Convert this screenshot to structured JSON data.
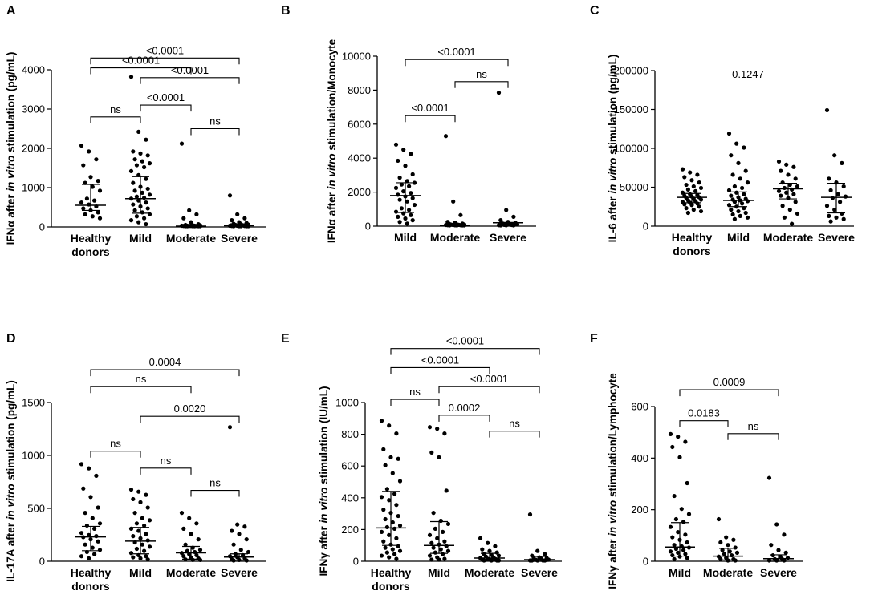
{
  "figure": {
    "panels": [
      "A",
      "B",
      "C",
      "D",
      "E",
      "F"
    ]
  },
  "chart_data": [
    {
      "panel": "A",
      "type": "scatter",
      "ylabel": [
        "IFNα after ",
        "in vitro",
        " stimulation (pg/mL)"
      ],
      "categories": [
        [
          "Healthy",
          "donors"
        ],
        [
          "Mild"
        ],
        [
          "Moderate"
        ],
        [
          "Severe"
        ]
      ],
      "ylim": [
        0,
        4000
      ],
      "yticks": [
        0,
        1000,
        2000,
        3000,
        4000
      ],
      "tick_labels": [
        "0",
        "1000",
        "2000",
        "3000",
        "4000"
      ],
      "medians": [
        550,
        720,
        20,
        30
      ],
      "iqr": [
        [
          420,
          1080
        ],
        [
          350,
          1280
        ],
        [
          5,
          60
        ],
        [
          10,
          80
        ]
      ],
      "points": [
        [
          2050,
          1900,
          1700,
          1550,
          1250,
          1150,
          1100,
          1000,
          900,
          700,
          650,
          600,
          550,
          500,
          450,
          400,
          350,
          300,
          250,
          200
        ],
        [
          3800,
          2400,
          2200,
          1900,
          1850,
          1800,
          1700,
          1650,
          1600,
          1550,
          1500,
          1400,
          1300,
          1200,
          1100,
          1000,
          950,
          900,
          850,
          800,
          750,
          720,
          700,
          650,
          600,
          550,
          500,
          450,
          400,
          350,
          300,
          250,
          200,
          150,
          100,
          50
        ],
        [
          2100,
          400,
          300,
          200,
          100,
          50,
          30,
          20,
          20,
          10,
          10,
          10,
          5,
          5,
          5,
          5,
          0,
          0,
          0,
          0,
          0,
          0
        ],
        [
          780,
          300,
          200,
          150,
          100,
          80,
          60,
          50,
          40,
          30,
          20,
          10,
          10,
          5,
          5,
          0,
          0,
          0,
          0,
          0
        ]
      ],
      "brackets": [
        {
          "from": 0,
          "to": 3,
          "level": 4300,
          "label": "<0.0001"
        },
        {
          "from": 0,
          "to": 2,
          "level": 4050,
          "label": "<0.0001"
        },
        {
          "from": 1,
          "to": 3,
          "level": 3800,
          "label": "<0.0001"
        },
        {
          "from": 1,
          "to": 2,
          "level": 3100,
          "label": "<0.0001"
        },
        {
          "from": 0,
          "to": 1,
          "level": 2800,
          "label": "ns"
        },
        {
          "from": 2,
          "to": 3,
          "level": 2500,
          "label": "ns"
        }
      ]
    },
    {
      "panel": "B",
      "type": "scatter",
      "ylabel": [
        "IFNα after ",
        "in vitro",
        " stimulation/Monocyte"
      ],
      "categories": [
        [
          "Mild"
        ],
        [
          "Moderate"
        ],
        [
          "Severe"
        ]
      ],
      "ylim": [
        0,
        10000
      ],
      "yticks": [
        0,
        2000,
        4000,
        6000,
        8000,
        10000
      ],
      "tick_labels": [
        "0",
        "2000",
        "4000",
        "6000",
        "8000",
        "10000"
      ],
      "medians": [
        1800,
        50,
        200
      ],
      "iqr": [
        [
          800,
          2550
        ],
        [
          0,
          150
        ],
        [
          20,
          300
        ]
      ],
      "points": [
        [
          4750,
          4450,
          4200,
          3800,
          3500,
          3000,
          2800,
          2600,
          2500,
          2400,
          2300,
          2200,
          2000,
          1900,
          1800,
          1700,
          1600,
          1500,
          1400,
          1200,
          1000,
          900,
          800,
          700,
          600,
          500,
          400,
          300,
          200,
          100
        ],
        [
          5250,
          1400,
          600,
          200,
          150,
          100,
          80,
          60,
          50,
          40,
          30,
          20,
          20,
          10,
          10,
          5,
          0,
          0,
          0,
          0
        ],
        [
          7800,
          900,
          500,
          300,
          200,
          150,
          100,
          80,
          50,
          30,
          20,
          10,
          5,
          0,
          0
        ]
      ],
      "brackets": [
        {
          "from": 0,
          "to": 2,
          "level": 9800,
          "label": "<0.0001"
        },
        {
          "from": 1,
          "to": 2,
          "level": 8500,
          "label": "ns"
        },
        {
          "from": 0,
          "to": 1,
          "level": 6500,
          "label": "<0.0001"
        }
      ]
    },
    {
      "panel": "C",
      "type": "scatter",
      "ylabel": [
        "IL-6 after ",
        "in vitro",
        " stimulation (pg/mL)"
      ],
      "categories": [
        [
          "Healthy",
          "donors"
        ],
        [
          "Mild"
        ],
        [
          "Moderate"
        ],
        [
          "Severe"
        ]
      ],
      "ylim": [
        0,
        200000
      ],
      "yticks": [
        0,
        50000,
        100000,
        150000,
        200000
      ],
      "tick_labels": [
        "0",
        "50000",
        "100000",
        "150000",
        "200000"
      ],
      "medians": [
        37000,
        33000,
        48000,
        37000
      ],
      "iqr": [
        [
          30000,
          42000
        ],
        [
          25000,
          44000
        ],
        [
          35000,
          55000
        ],
        [
          17000,
          55000
        ]
      ],
      "points": [
        [
          72000,
          68000,
          65000,
          62000,
          58000,
          55000,
          52000,
          50000,
          48000,
          46000,
          44000,
          42000,
          40000,
          39000,
          38000,
          37000,
          36000,
          35000,
          34000,
          33000,
          32000,
          31000,
          30000,
          29000,
          28000,
          27000,
          26000,
          24000,
          22000,
          20000,
          18000,
          16000
        ],
        [
          118000,
          105000,
          100000,
          90000,
          80000,
          70000,
          65000,
          60000,
          55000,
          50000,
          48000,
          45000,
          42000,
          40000,
          38000,
          36000,
          34000,
          33000,
          32000,
          31000,
          30000,
          28000,
          26000,
          24000,
          22000,
          20000,
          18000,
          16000,
          14000,
          12000,
          10000,
          8000
        ],
        [
          82000,
          78000,
          75000,
          70000,
          65000,
          60000,
          55000,
          52000,
          50000,
          48000,
          46000,
          44000,
          42000,
          40000,
          38000,
          35000,
          30000,
          25000,
          20000,
          15000,
          10000,
          2000
        ],
        [
          148000,
          90000,
          80000,
          60000,
          55000,
          50000,
          45000,
          40000,
          37000,
          35000,
          30000,
          25000,
          20000,
          15000,
          12000,
          10000,
          8000,
          5000
        ]
      ],
      "brackets": [],
      "annotation": "0.1247"
    },
    {
      "panel": "D",
      "type": "scatter",
      "ylabel": [
        "IL-17A after ",
        "in vitro",
        " stimulation (pg/mL)"
      ],
      "categories": [
        [
          "Healthy",
          "donors"
        ],
        [
          "Mild"
        ],
        [
          "Moderate"
        ],
        [
          "Severe"
        ]
      ],
      "ylim": [
        0,
        1500
      ],
      "yticks": [
        0,
        500,
        1000,
        1500
      ],
      "tick_labels": [
        "0",
        "500",
        "1000",
        "1500"
      ],
      "medians": [
        230,
        190,
        80,
        40
      ],
      "iqr": [
        [
          100,
          330
        ],
        [
          70,
          320
        ],
        [
          20,
          140
        ],
        [
          10,
          70
        ]
      ],
      "points": [
        [
          910,
          870,
          800,
          680,
          600,
          500,
          450,
          400,
          350,
          330,
          300,
          260,
          240,
          230,
          220,
          200,
          180,
          150,
          120,
          100,
          80,
          60,
          40,
          20
        ],
        [
          670,
          650,
          620,
          580,
          550,
          500,
          450,
          400,
          380,
          350,
          330,
          300,
          280,
          250,
          230,
          210,
          190,
          170,
          150,
          130,
          110,
          90,
          70,
          50,
          40,
          30,
          20,
          10
        ],
        [
          450,
          400,
          350,
          300,
          250,
          200,
          150,
          120,
          100,
          90,
          80,
          70,
          60,
          50,
          40,
          30,
          20,
          10,
          5,
          5
        ],
        [
          1260,
          340,
          320,
          280,
          250,
          200,
          150,
          100,
          80,
          60,
          50,
          40,
          30,
          20,
          10,
          5,
          0,
          0
        ]
      ],
      "brackets": [
        {
          "from": 0,
          "to": 3,
          "level": 1810,
          "label": "0.0004"
        },
        {
          "from": 0,
          "to": 2,
          "level": 1650,
          "label": "ns"
        },
        {
          "from": 1,
          "to": 3,
          "level": 1370,
          "label": "0.0020"
        },
        {
          "from": 0,
          "to": 1,
          "level": 1040,
          "label": "ns"
        },
        {
          "from": 1,
          "to": 2,
          "level": 880,
          "label": "ns"
        },
        {
          "from": 2,
          "to": 3,
          "level": 670,
          "label": "ns"
        }
      ]
    },
    {
      "panel": "E",
      "type": "scatter",
      "ylabel": [
        "IFNγ after ",
        "in vitro",
        " stimulation (IU/mL)"
      ],
      "categories": [
        [
          "Healthy",
          "donors"
        ],
        [
          "Mild"
        ],
        [
          "Moderate"
        ],
        [
          "Severe"
        ]
      ],
      "ylim": [
        0,
        1000
      ],
      "yticks": [
        0,
        200,
        400,
        600,
        800,
        1000
      ],
      "tick_labels": [
        "0",
        "200",
        "400",
        "600",
        "800",
        "1000"
      ],
      "medians": [
        210,
        100,
        20,
        10
      ],
      "iqr": [
        [
          100,
          440
        ],
        [
          50,
          250
        ],
        [
          5,
          50
        ],
        [
          0,
          30
        ]
      ],
      "points": [
        [
          880,
          850,
          800,
          700,
          650,
          640,
          600,
          550,
          500,
          450,
          420,
          400,
          380,
          350,
          320,
          300,
          280,
          260,
          240,
          220,
          210,
          200,
          180,
          160,
          140,
          120,
          100,
          90,
          80,
          70,
          60,
          50,
          40,
          30,
          20,
          10
        ],
        [
          840,
          830,
          800,
          680,
          650,
          440,
          300,
          250,
          230,
          200,
          180,
          160,
          140,
          120,
          110,
          100,
          90,
          80,
          70,
          60,
          50,
          40,
          30,
          20,
          10,
          5,
          5
        ],
        [
          140,
          110,
          90,
          70,
          60,
          50,
          40,
          35,
          30,
          25,
          20,
          15,
          10,
          10,
          5,
          5,
          0,
          0,
          0,
          0
        ],
        [
          290,
          60,
          40,
          30,
          20,
          15,
          10,
          10,
          5,
          5,
          0,
          0,
          0,
          0,
          0
        ]
      ],
      "brackets": [
        {
          "from": 0,
          "to": 3,
          "level": 1340,
          "label": "<0.0001"
        },
        {
          "from": 0,
          "to": 2,
          "level": 1220,
          "label": "<0.0001"
        },
        {
          "from": 1,
          "to": 3,
          "level": 1100,
          "label": "<0.0001"
        },
        {
          "from": 0,
          "to": 1,
          "level": 1020,
          "label": "ns"
        },
        {
          "from": 1,
          "to": 2,
          "level": 920,
          "label": "0.0002"
        },
        {
          "from": 2,
          "to": 3,
          "level": 820,
          "label": "ns"
        }
      ]
    },
    {
      "panel": "F",
      "type": "scatter",
      "ylabel": [
        "IFNγ after ",
        "in vitro",
        " stimulation/Lymphocyte"
      ],
      "categories": [
        [
          "Mild"
        ],
        [
          "Moderate"
        ],
        [
          "Severe"
        ]
      ],
      "ylim": [
        0,
        600
      ],
      "yticks": [
        0,
        200,
        400,
        600
      ],
      "tick_labels": [
        "0",
        "200",
        "400",
        "600"
      ],
      "medians": [
        55,
        20,
        10
      ],
      "iqr": [
        [
          20,
          150
        ],
        [
          5,
          50
        ],
        [
          0,
          25
        ]
      ],
      "points": [
        [
          490,
          480,
          460,
          440,
          400,
          300,
          250,
          200,
          180,
          160,
          150,
          130,
          110,
          100,
          90,
          80,
          70,
          60,
          55,
          50,
          45,
          40,
          35,
          30,
          25,
          20,
          15,
          10,
          5
        ],
        [
          160,
          90,
          80,
          70,
          60,
          50,
          40,
          35,
          30,
          25,
          20,
          15,
          10,
          5,
          5,
          0,
          0
        ],
        [
          320,
          140,
          100,
          60,
          40,
          30,
          20,
          15,
          10,
          5,
          5,
          0,
          0,
          0
        ]
      ],
      "brackets": [
        {
          "from": 0,
          "to": 2,
          "level": 665,
          "label": "0.0009"
        },
        {
          "from": 0,
          "to": 1,
          "level": 545,
          "label": "0.0183"
        },
        {
          "from": 1,
          "to": 2,
          "level": 495,
          "label": "ns"
        }
      ]
    }
  ]
}
